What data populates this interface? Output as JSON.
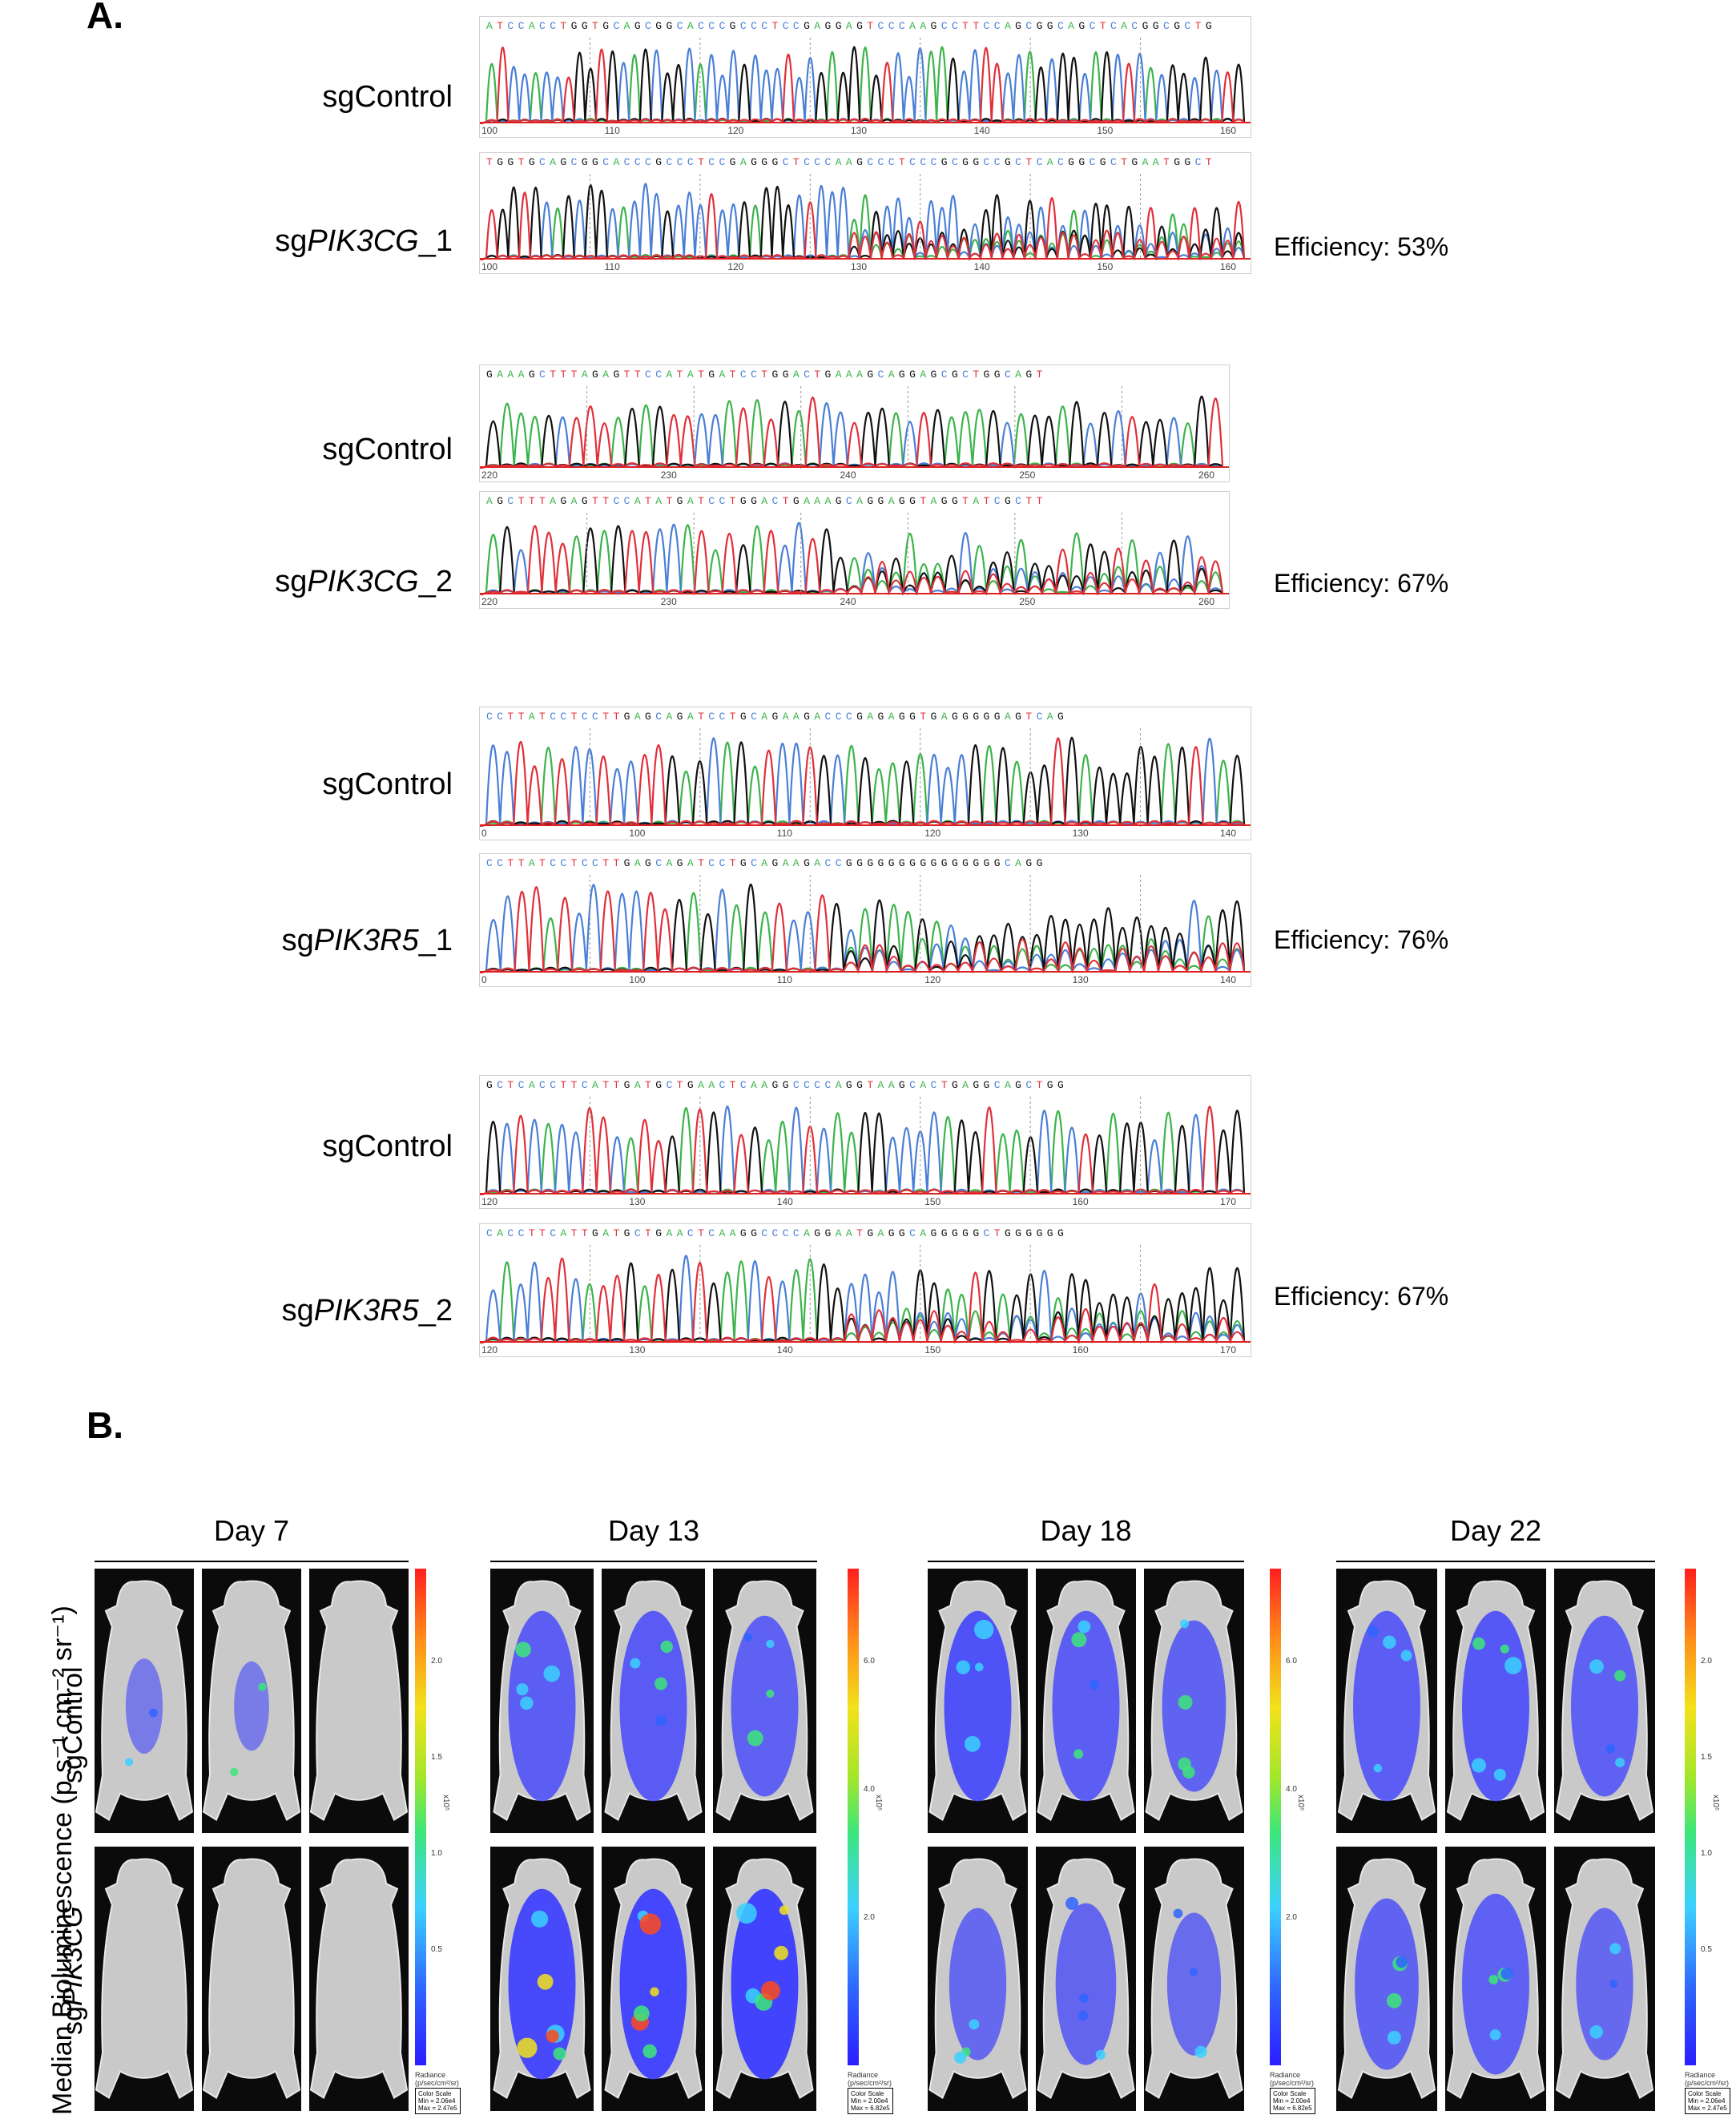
{
  "panel_a": {
    "letter": "A.",
    "pairs": [
      {
        "control_label": "sgControl",
        "guide_label_prefix": "sg",
        "guide_label_gene": "PIK3CG",
        "guide_label_suffix": "_1",
        "efficiency": "Efficiency: 53%",
        "control_seq": "ATCCACCTGGTGCAGCGGCACCCGCCCTCCGAGGAGTCCCAAGCCTTCCAGCGGCAGCTCACGGCGCTG",
        "guide_seq": "TGGTGCAGCGGCACCCGCCCTCCGAGGGCTCCCAAGCCCTCCCGCGGCCGCTCACGGCGCTGAATGGCT",
        "control_ticks": [
          "100",
          "110",
          "120",
          "130",
          "140",
          "150",
          "160"
        ],
        "guide_ticks": [
          "100",
          "110",
          "120",
          "130",
          "140",
          "150",
          "160"
        ]
      },
      {
        "control_label": "sgControl",
        "guide_label_prefix": "sg",
        "guide_label_gene": "PIK3CG",
        "guide_label_suffix": "_2",
        "efficiency": "Efficiency: 67%",
        "control_seq": "GAAAGCTTTAGAGTTCCATATGATCCTGGACTGAAAGCAGGAGCGCTGGCAGT",
        "guide_seq": "AGCTTTAGAGTTCCATATGATCCTGGACTGAAAGCAGGAGGTAGGTATCGCTT",
        "control_ticks": [
          "220",
          "230",
          "240",
          "250",
          "260"
        ],
        "guide_ticks": [
          "220",
          "230",
          "240",
          "250",
          "260"
        ]
      },
      {
        "control_label": "sgControl",
        "guide_label_prefix": "sg",
        "guide_label_gene": "PIK3R5",
        "guide_label_suffix": "_1",
        "efficiency": "Efficiency: 76%",
        "control_seq": "CCTTATCCTCCTTGAGCAGATCCTGCAGAAGACCCGAGAGGTGAGGGGGAGTCAG",
        "guide_seq": "CCTTATCCTCCTTGAGCAGATCCTGCAGAAGACCGGGGGGGGGGGGGGGCAGG",
        "control_ticks": [
          "0",
          "100",
          "110",
          "120",
          "130",
          "140"
        ],
        "guide_ticks": [
          "0",
          "100",
          "110",
          "120",
          "130",
          "140"
        ]
      },
      {
        "control_label": "sgControl",
        "guide_label_prefix": "sg",
        "guide_label_gene": "PIK3R5",
        "guide_label_suffix": "_2",
        "efficiency": "Efficiency: 67%",
        "control_seq": "GCTCACCTTCATTGATGCTGAACTCAAGGCCCCAGGTAAGCACTGAGGCAGCTGG",
        "guide_seq": "CACCTTCATTGATGCTGAACTCAAGGCCCCAGGAATGAGGCAGGGGGCTGGGGGG",
        "control_ticks": [
          "120",
          "130",
          "140",
          "150",
          "160",
          "170"
        ],
        "guide_ticks": [
          "120",
          "130",
          "140",
          "150",
          "160",
          "170"
        ]
      }
    ],
    "base_colors": {
      "A": "#3cb44b",
      "C": "#4a7fd6",
      "G": "#111111",
      "T": "#e0303a"
    }
  },
  "panel_b": {
    "letter": "B.",
    "y_axis_label": "Median Bioluminescence (p s⁻¹ cm⁻² sr⁻¹)",
    "row_labels": [
      {
        "prefix": "sgControl",
        "gene": ""
      },
      {
        "prefix": "sg",
        "gene": "PIK3CG"
      }
    ],
    "days": [
      {
        "label": "Day 7",
        "colorbar_ticks": [
          "2.0",
          "1.5",
          "1.0",
          "0.5"
        ],
        "exponent": "x10⁵",
        "scale_min": "Min = 2.06e4",
        "scale_max": "Max = 2.47e5"
      },
      {
        "label": "Day 13",
        "colorbar_ticks": [
          "6.0",
          "4.0",
          "2.0"
        ],
        "exponent": "x10⁵",
        "scale_min": "Min = 2.00e4",
        "scale_max": "Max = 6.82e5"
      },
      {
        "label": "Day 18",
        "colorbar_ticks": [
          "6.0",
          "4.0",
          "2.0"
        ],
        "exponent": "x10⁵",
        "scale_min": "Min = 2.00e4",
        "scale_max": "Max = 6.82e5"
      },
      {
        "label": "Day 22",
        "colorbar_ticks": [
          "2.0",
          "1.5",
          "1.0",
          "0.5"
        ],
        "exponent": "x10⁵",
        "scale_min": "Min = 2.06e4",
        "scale_max": "Max = 2.47e5"
      }
    ],
    "colorbar_units": "Radiance\n(p/sec/cm²/sr)",
    "color_scale_title": "Color Scale",
    "signal_levels": {
      "day7": {
        "control": [
          0.05,
          0.02,
          0.0
        ],
        "pik3cg": [
          0.0,
          0.0,
          0.0
        ]
      },
      "day13": {
        "control": [
          0.55,
          0.6,
          0.5
        ],
        "pik3cg": [
          0.9,
          0.95,
          1.0
        ]
      },
      "day18": {
        "control": [
          0.75,
          0.55,
          0.45
        ],
        "pik3cg": [
          0.35,
          0.4,
          0.3
        ]
      },
      "day22": {
        "control": [
          0.55,
          0.65,
          0.5
        ],
        "pik3cg": [
          0.45,
          0.5,
          0.35
        ]
      }
    }
  }
}
